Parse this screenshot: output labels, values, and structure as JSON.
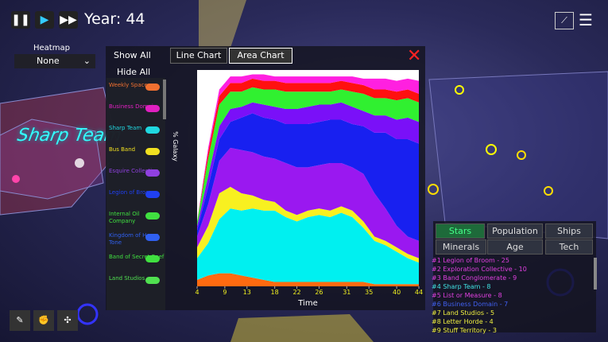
{
  "top_bar": {
    "year": "Year: 44"
  },
  "heatmap": {
    "label": "Heatmap",
    "selected": "None"
  },
  "map_labels": [
    "Sharp Team"
  ],
  "filter_buttons": [
    "Show All",
    "Hide All"
  ],
  "chart_tabs": [
    "Line Chart",
    "Area Chart"
  ],
  "factions": [
    {
      "name": "Weekly Space",
      "color": "#f07030"
    },
    {
      "name": "Business Domain",
      "color": "#e020c0"
    },
    {
      "name": "Sharp Team",
      "color": "#20d8e0"
    },
    {
      "name": "Bus Band",
      "color": "#f0e020"
    },
    {
      "name": "Esquire Collective",
      "color": "#9040e0"
    },
    {
      "name": "Legion of Broom",
      "color": "#2040f0"
    },
    {
      "name": "Internal Oil Company",
      "color": "#40e040"
    },
    {
      "name": "Kingdom of Home Tone",
      "color": "#3060f0"
    },
    {
      "name": "Band of Secret Reef",
      "color": "#40e040"
    },
    {
      "name": "Land Studios",
      "color": "#50e050"
    }
  ],
  "chart_data": {
    "type": "stacked_area",
    "ylabel": "% Galaxy",
    "xlabel": "Time",
    "x": [
      4,
      6,
      8,
      10,
      12,
      14,
      16,
      18,
      20,
      22,
      24,
      26,
      28,
      30,
      32,
      34,
      36,
      38,
      40,
      42,
      44
    ],
    "xlim": [
      4,
      44
    ],
    "xticks": [
      4,
      9,
      13,
      18,
      22,
      26,
      31,
      35,
      40,
      44
    ],
    "ylim": [
      0,
      100
    ],
    "series": [
      {
        "color": "#ff6a10",
        "values": [
          3,
          5,
          6,
          6,
          5,
          4,
          3,
          2,
          2,
          2,
          2,
          2,
          2,
          2,
          2,
          2,
          1,
          1,
          1,
          1,
          1
        ]
      },
      {
        "color": "#00f0f0",
        "values": [
          10,
          15,
          25,
          30,
          30,
          32,
          32,
          33,
          30,
          28,
          30,
          31,
          30,
          32,
          30,
          25,
          20,
          18,
          15,
          12,
          10
        ]
      },
      {
        "color": "#f8f020",
        "values": [
          5,
          8,
          12,
          10,
          8,
          6,
          5,
          4,
          3,
          3,
          3,
          3,
          3,
          3,
          3,
          3,
          2,
          2,
          2,
          2,
          2
        ]
      },
      {
        "color": "#9a18f0",
        "values": [
          5,
          10,
          15,
          18,
          20,
          20,
          20,
          20,
          22,
          22,
          20,
          20,
          22,
          20,
          20,
          22,
          20,
          15,
          10,
          8,
          8
        ]
      },
      {
        "color": "#1820f0",
        "values": [
          3,
          8,
          10,
          12,
          15,
          18,
          18,
          18,
          18,
          20,
          20,
          20,
          20,
          20,
          20,
          22,
          28,
          35,
          40,
          45,
          45
        ]
      },
      {
        "color": "#7a10f8",
        "values": [
          2,
          5,
          6,
          6,
          5,
          5,
          6,
          6,
          7,
          7,
          8,
          8,
          7,
          8,
          8,
          7,
          8,
          8,
          9,
          10,
          10
        ]
      },
      {
        "color": "#30f030",
        "values": [
          2,
          8,
          10,
          8,
          7,
          7,
          7,
          8,
          8,
          8,
          7,
          6,
          6,
          6,
          7,
          8,
          8,
          8,
          9,
          9,
          9
        ]
      },
      {
        "color": "#ff1010",
        "values": [
          0,
          3,
          4,
          4,
          4,
          4,
          4,
          4,
          4,
          4,
          4,
          4,
          4,
          4,
          4,
          4,
          4,
          4,
          4,
          4,
          4
        ]
      },
      {
        "color": "#ff20e0",
        "values": [
          0,
          2,
          3,
          3,
          3,
          2,
          3,
          2,
          3,
          3,
          3,
          3,
          3,
          2,
          3,
          3,
          5,
          5,
          5,
          5,
          6
        ]
      }
    ]
  },
  "ranking": {
    "tabs": [
      "Stars",
      "Population",
      "Ships",
      "Minerals",
      "Age",
      "Tech"
    ],
    "entries": [
      {
        "text": "#1 Legion of Broom - 25",
        "color": "#e040e0"
      },
      {
        "text": "#2 Exploration Collective - 10",
        "color": "#e040e0"
      },
      {
        "text": "#3 Band Conglomerate - 9",
        "color": "#e040e0"
      },
      {
        "text": "#4 Sharp Team - 8",
        "color": "#40e0e0"
      },
      {
        "text": "#5 List or Measure - 8",
        "color": "#e040e0"
      },
      {
        "text": "#6 Business Domain - 7",
        "color": "#4060f0"
      },
      {
        "text": "#7 Land Studios - 5",
        "color": "#f0f040"
      },
      {
        "text": "#8 Letter Horde - 4",
        "color": "#f0f040"
      },
      {
        "text": "#9 Stuff Territory - 3",
        "color": "#f0f040"
      }
    ]
  }
}
